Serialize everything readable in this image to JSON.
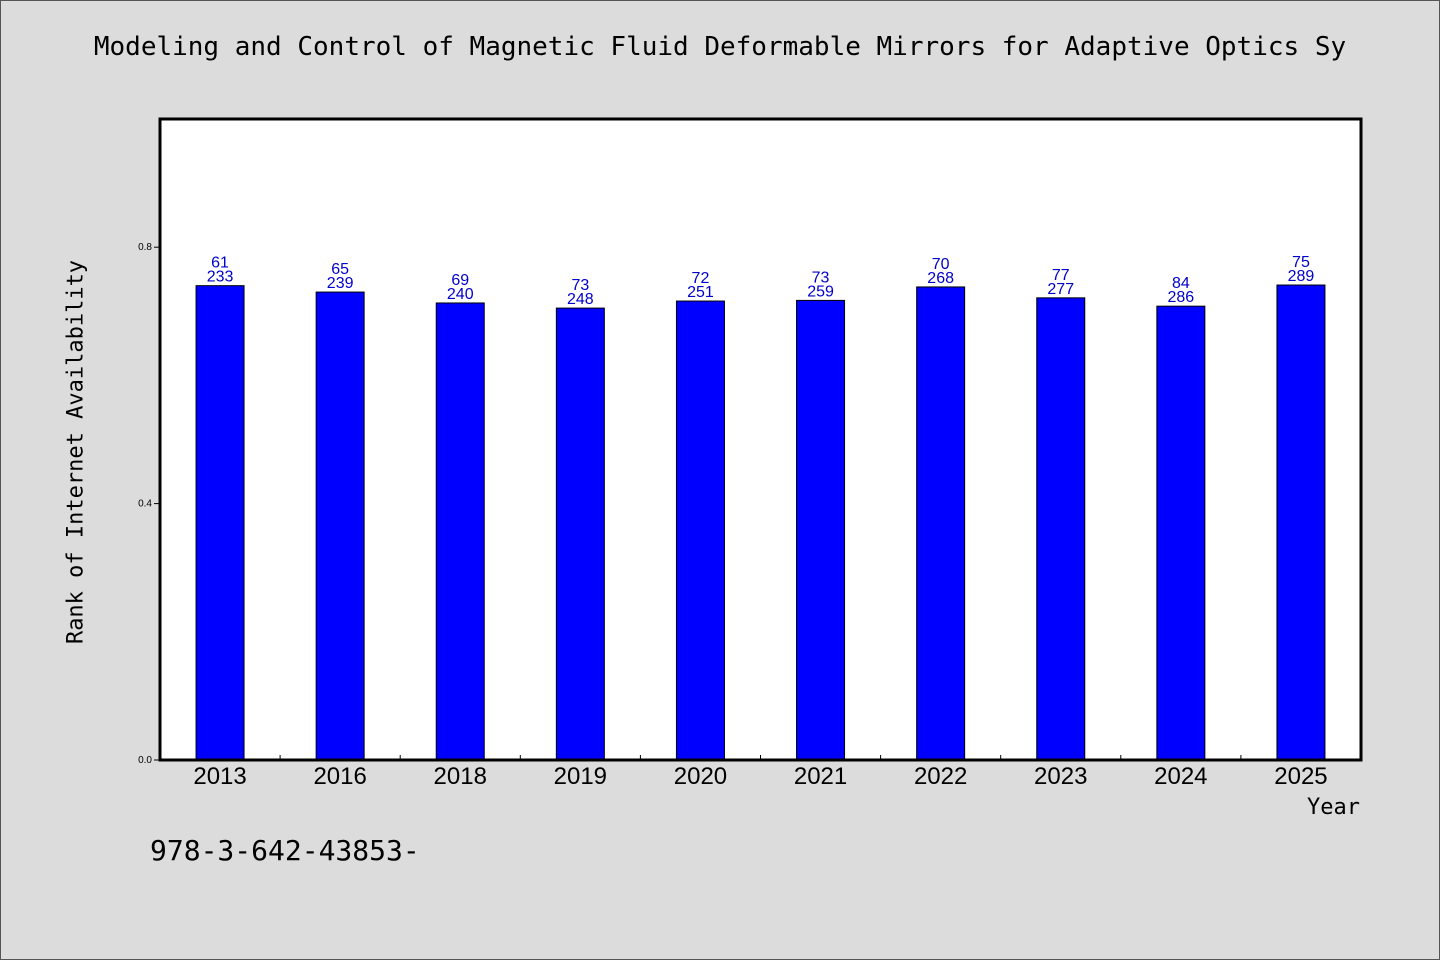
{
  "chart_data": {
    "type": "bar",
    "title": "Modeling and Control of Magnetic Fluid Deformable Mirrors for Adaptive Optics Sy",
    "xlabel": "Year",
    "ylabel": "Rank of Internet Availability",
    "categories": [
      "2013",
      "2016",
      "2018",
      "2019",
      "2020",
      "2021",
      "2022",
      "2023",
      "2024",
      "2025"
    ],
    "values": [
      0.74,
      0.73,
      0.713,
      0.705,
      0.716,
      0.717,
      0.738,
      0.721,
      0.708,
      0.741
    ],
    "label_top": [
      "61",
      "65",
      "69",
      "73",
      "72",
      "73",
      "70",
      "77",
      "84",
      "75"
    ],
    "label_bottom": [
      "233",
      "239",
      "240",
      "248",
      "251",
      "259",
      "268",
      "277",
      "286",
      "289"
    ],
    "ylim": [
      0,
      1.0
    ],
    "yticks": [
      0.0,
      0.4,
      0.8
    ],
    "ytick_labels": [
      "0.0",
      "0.4",
      "0.8"
    ],
    "bar_color": "#0000ff",
    "label_color": "#0000cc",
    "grid": false
  },
  "footer": {
    "isbn": "978-3-642-43853-"
  }
}
